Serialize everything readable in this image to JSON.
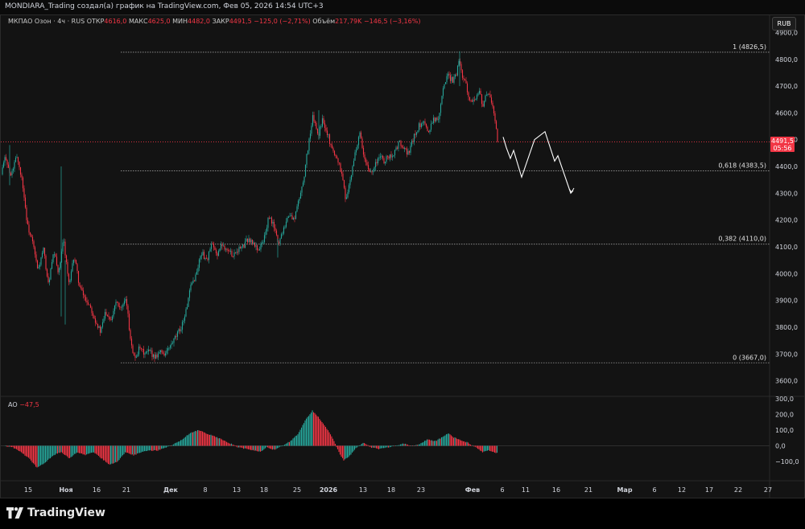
{
  "header": {
    "title": "MONDIARA_Trading создал(а) график на TradingView.com, Фев 05, 2026 14:54 UTC+3"
  },
  "legend": {
    "symbol": "МКПАО Озон · 4ч · RUS",
    "open_label": "ОТКР",
    "open_value": "4616,0",
    "high_label": "МАКС",
    "high_value": "4625,0",
    "low_label": "МИН",
    "low_value": "4482,0",
    "close_label": "ЗАКР",
    "close_value": "4491,5",
    "change": "−125,0 (−2,71%)",
    "volume_label": "Объём",
    "volume_value": "217,79K",
    "volume_change": "−146,5 (−3,16%)"
  },
  "currency_button": "RUB",
  "price_tag": {
    "price": "4491,5",
    "timer": "05:56"
  },
  "ao_legend": {
    "name": "AO",
    "value": "−47,5"
  },
  "logo_text": "TradingView",
  "colors": {
    "up": "#26a69a",
    "down": "#f23645",
    "background": "#131313",
    "text": "#d1d4dc",
    "projection": "#ffffff"
  },
  "chart_data": [
    {
      "type": "candlestick",
      "symbol": "Озон",
      "timeframe": "4ч",
      "ylim": [
        3600,
        4920
      ],
      "y_ticks": [
        "3600,0",
        "3700,0",
        "3800,0",
        "3900,0",
        "4000,0",
        "4100,0",
        "4200,0",
        "4300,0",
        "4400,0",
        "4500,0",
        "4600,0",
        "4700,0",
        "4800,0",
        "4900,0"
      ],
      "x_ticks": [
        "15",
        "Ноя",
        "16",
        "21",
        "Дек",
        "8",
        "13",
        "18",
        "25",
        "2026",
        "13",
        "18",
        "23",
        "Фев",
        "6",
        "11",
        "16",
        "21",
        "Мар",
        "6",
        "12",
        "17",
        "22",
        "27"
      ],
      "last_price": 4491.5,
      "fib_levels": [
        {
          "label": "1 (4826,5)",
          "value": 4826.5
        },
        {
          "label": "0,618 (4383,5)",
          "value": 4383.5
        },
        {
          "label": "0,382 (4110,0)",
          "value": 4110.0
        },
        {
          "label": "0 (3667,0)",
          "value": 3667.0
        }
      ],
      "price_path": [
        [
          0,
          4370
        ],
        [
          6,
          4440
        ],
        [
          12,
          4360
        ],
        [
          20,
          4440
        ],
        [
          27,
          4340
        ],
        [
          33,
          4180
        ],
        [
          40,
          4110
        ],
        [
          46,
          4010
        ],
        [
          53,
          4090
        ],
        [
          59,
          3960
        ],
        [
          66,
          4080
        ],
        [
          72,
          4000
        ],
        [
          78,
          4130
        ],
        [
          85,
          3950
        ],
        [
          91,
          4070
        ],
        [
          98,
          3950
        ],
        [
          104,
          3910
        ],
        [
          111,
          3880
        ],
        [
          117,
          3830
        ],
        [
          124,
          3780
        ],
        [
          130,
          3860
        ],
        [
          137,
          3830
        ],
        [
          143,
          3900
        ],
        [
          150,
          3870
        ],
        [
          156,
          3900
        ],
        [
          160,
          3780
        ],
        [
          166,
          3680
        ],
        [
          172,
          3720
        ],
        [
          179,
          3700
        ],
        [
          185,
          3710
        ],
        [
          191,
          3690
        ],
        [
          198,
          3710
        ],
        [
          204,
          3700
        ],
        [
          211,
          3730
        ],
        [
          217,
          3760
        ],
        [
          224,
          3800
        ],
        [
          230,
          3860
        ],
        [
          236,
          3950
        ],
        [
          243,
          4000
        ],
        [
          249,
          4080
        ],
        [
          256,
          4050
        ],
        [
          262,
          4110
        ],
        [
          268,
          4070
        ],
        [
          275,
          4110
        ],
        [
          281,
          4090
        ],
        [
          288,
          4070
        ],
        [
          294,
          4090
        ],
        [
          301,
          4100
        ],
        [
          307,
          4130
        ],
        [
          314,
          4110
        ],
        [
          320,
          4090
        ],
        [
          326,
          4120
        ],
        [
          333,
          4210
        ],
        [
          339,
          4180
        ],
        [
          345,
          4110
        ],
        [
          351,
          4170
        ],
        [
          358,
          4220
        ],
        [
          364,
          4200
        ],
        [
          370,
          4270
        ],
        [
          376,
          4350
        ],
        [
          382,
          4480
        ],
        [
          388,
          4590
        ],
        [
          394,
          4510
        ],
        [
          400,
          4580
        ],
        [
          406,
          4520
        ],
        [
          412,
          4460
        ],
        [
          418,
          4430
        ],
        [
          424,
          4370
        ],
        [
          428,
          4280
        ],
        [
          434,
          4340
        ],
        [
          440,
          4450
        ],
        [
          446,
          4520
        ],
        [
          452,
          4420
        ],
        [
          458,
          4380
        ],
        [
          464,
          4400
        ],
        [
          470,
          4440
        ],
        [
          476,
          4420
        ],
        [
          483,
          4440
        ],
        [
          489,
          4450
        ],
        [
          495,
          4490
        ],
        [
          501,
          4460
        ],
        [
          507,
          4450
        ],
        [
          513,
          4510
        ],
        [
          519,
          4550
        ],
        [
          525,
          4560
        ],
        [
          531,
          4530
        ],
        [
          537,
          4580
        ],
        [
          543,
          4570
        ],
        [
          549,
          4690
        ],
        [
          555,
          4740
        ],
        [
          561,
          4720
        ],
        [
          566,
          4750
        ],
        [
          570,
          4800
        ],
        [
          574,
          4730
        ],
        [
          578,
          4700
        ],
        [
          582,
          4660
        ],
        [
          588,
          4640
        ],
        [
          594,
          4690
        ],
        [
          599,
          4620
        ],
        [
          604,
          4680
        ],
        [
          610,
          4640
        ],
        [
          614,
          4570
        ],
        [
          617,
          4491.5
        ]
      ],
      "projection": [
        [
          624,
          4510
        ],
        [
          628,
          4470
        ],
        [
          633,
          4430
        ],
        [
          637,
          4460
        ],
        [
          647,
          4360
        ],
        [
          663,
          4500
        ],
        [
          676,
          4530
        ],
        [
          688,
          4420
        ],
        [
          692,
          4440
        ],
        [
          708,
          4300
        ],
        [
          711,
          4310
        ]
      ]
    },
    {
      "type": "bar",
      "name": "AO",
      "ylim": [
        -180,
        310
      ],
      "y_ticks": [
        "300,0",
        "200,0",
        "100,0",
        "0,0",
        "−100,0"
      ],
      "last_value": -47.5,
      "keyframes": [
        [
          6,
          -2
        ],
        [
          15,
          -10
        ],
        [
          25,
          -40
        ],
        [
          35,
          -80
        ],
        [
          45,
          -140
        ],
        [
          55,
          -110
        ],
        [
          65,
          -60
        ],
        [
          75,
          -40
        ],
        [
          85,
          -80
        ],
        [
          95,
          -40
        ],
        [
          105,
          -60
        ],
        [
          115,
          -40
        ],
        [
          125,
          -80
        ],
        [
          135,
          -120
        ],
        [
          145,
          -100
        ],
        [
          155,
          -40
        ],
        [
          165,
          -60
        ],
        [
          175,
          -40
        ],
        [
          185,
          -30
        ],
        [
          195,
          -30
        ],
        [
          205,
          -10
        ],
        [
          215,
          10
        ],
        [
          225,
          40
        ],
        [
          235,
          80
        ],
        [
          245,
          100
        ],
        [
          255,
          80
        ],
        [
          265,
          60
        ],
        [
          275,
          40
        ],
        [
          285,
          15
        ],
        [
          295,
          -10
        ],
        [
          305,
          -20
        ],
        [
          315,
          -30
        ],
        [
          322,
          -40
        ],
        [
          330,
          -10
        ],
        [
          340,
          -25
        ],
        [
          350,
          0
        ],
        [
          360,
          30
        ],
        [
          370,
          80
        ],
        [
          378,
          160
        ],
        [
          387,
          225
        ],
        [
          395,
          180
        ],
        [
          405,
          110
        ],
        [
          413,
          40
        ],
        [
          420,
          -40
        ],
        [
          426,
          -95
        ],
        [
          434,
          -60
        ],
        [
          442,
          -10
        ],
        [
          450,
          20
        ],
        [
          460,
          -10
        ],
        [
          470,
          -20
        ],
        [
          480,
          -10
        ],
        [
          490,
          0
        ],
        [
          500,
          15
        ],
        [
          510,
          0
        ],
        [
          520,
          10
        ],
        [
          530,
          40
        ],
        [
          540,
          30
        ],
        [
          550,
          60
        ],
        [
          556,
          80
        ],
        [
          562,
          55
        ],
        [
          570,
          40
        ],
        [
          580,
          20
        ],
        [
          590,
          -10
        ],
        [
          598,
          -40
        ],
        [
          606,
          -30
        ],
        [
          612,
          -40
        ],
        [
          617,
          -48
        ]
      ]
    }
  ]
}
